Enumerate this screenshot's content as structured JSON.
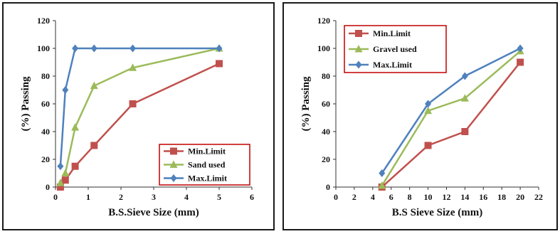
{
  "chart_data": [
    {
      "type": "line",
      "title": "",
      "xlabel": "B.S.Sieve Size (mm)",
      "ylabel": "(%) Passing",
      "xlim": [
        0,
        6
      ],
      "ylim": [
        0,
        120
      ],
      "xticks": [
        0,
        1,
        2,
        3,
        4,
        5,
        6
      ],
      "yticks": [
        0,
        20,
        40,
        60,
        80,
        100,
        120
      ],
      "legend_position": "bottom-right",
      "grid": false,
      "series": [
        {
          "name": "Min.Limit",
          "color": "#c0504d",
          "marker": "square",
          "x": [
            0.15,
            0.3,
            0.6,
            1.18,
            2.36,
            5.0
          ],
          "y": [
            0,
            5,
            15,
            30,
            60,
            89
          ]
        },
        {
          "name": "Sand used",
          "color": "#9bbb59",
          "marker": "triangle",
          "x": [
            0.15,
            0.3,
            0.6,
            1.18,
            2.36,
            5.0
          ],
          "y": [
            3,
            10,
            43,
            73,
            86,
            100
          ]
        },
        {
          "name": "Max.Limit",
          "color": "#4f81bd",
          "marker": "diamond",
          "x": [
            0.15,
            0.3,
            0.6,
            1.18,
            2.36,
            5.0
          ],
          "y": [
            15,
            70,
            100,
            100,
            100,
            100
          ]
        }
      ]
    },
    {
      "type": "line",
      "title": "",
      "xlabel": "B.S Sieve Size (mm)",
      "ylabel": "(%) Passing",
      "xlim": [
        0,
        22
      ],
      "ylim": [
        0,
        120
      ],
      "xticks": [
        0,
        2,
        4,
        6,
        8,
        10,
        12,
        14,
        16,
        18,
        20,
        22
      ],
      "yticks": [
        0,
        20,
        40,
        60,
        80,
        100,
        120
      ],
      "legend_position": "top-left",
      "grid": false,
      "series": [
        {
          "name": "Min.Limit",
          "color": "#c0504d",
          "marker": "square",
          "x": [
            5,
            10,
            14,
            20
          ],
          "y": [
            0,
            30,
            40,
            90
          ]
        },
        {
          "name": "Gravel used",
          "color": "#9bbb59",
          "marker": "triangle",
          "x": [
            5,
            10,
            14,
            20
          ],
          "y": [
            1,
            55,
            64,
            98
          ]
        },
        {
          "name": "Max.Limit",
          "color": "#4f81bd",
          "marker": "diamond",
          "x": [
            5,
            10,
            14,
            20
          ],
          "y": [
            10,
            60,
            80,
            100
          ]
        }
      ]
    }
  ]
}
